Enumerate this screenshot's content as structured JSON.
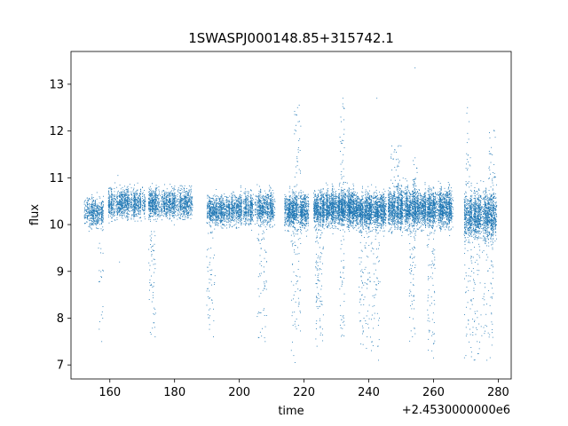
{
  "chart_data": {
    "type": "scatter",
    "title": "1SWASPJ000148.85+315742.1",
    "xlabel": "time",
    "ylabel": "flux",
    "x_offset_label": "+2.4530000000e6",
    "xlim": [
      148,
      284
    ],
    "ylim": [
      6.7,
      13.7
    ],
    "x_ticks": [
      160,
      180,
      200,
      220,
      240,
      260,
      280
    ],
    "y_ticks": [
      7,
      8,
      9,
      10,
      11,
      12,
      13
    ],
    "grid": false,
    "marker_color": "#1f77b4",
    "segments": [
      {
        "x_start": 152.0,
        "x_end": 158.0,
        "center": 10.25,
        "spread": 0.25,
        "n": 60
      },
      {
        "x_start": 159.5,
        "x_end": 171.0,
        "center": 10.45,
        "spread": 0.25,
        "n": 130
      },
      {
        "x_start": 172.0,
        "x_end": 185.5,
        "center": 10.45,
        "spread": 0.25,
        "n": 160
      },
      {
        "x_start": 190.0,
        "x_end": 197.5,
        "center": 10.3,
        "spread": 0.25,
        "n": 100
      },
      {
        "x_start": 197.5,
        "x_end": 211.0,
        "center": 10.35,
        "spread": 0.28,
        "n": 170
      },
      {
        "x_start": 214.0,
        "x_end": 221.5,
        "center": 10.3,
        "spread": 0.3,
        "n": 130
      },
      {
        "x_start": 223.0,
        "x_end": 229.5,
        "center": 10.35,
        "spread": 0.3,
        "n": 130
      },
      {
        "x_start": 229.5,
        "x_end": 236.0,
        "center": 10.35,
        "spread": 0.3,
        "n": 140
      },
      {
        "x_start": 236.0,
        "x_end": 245.5,
        "center": 10.3,
        "spread": 0.3,
        "n": 180
      },
      {
        "x_start": 246.0,
        "x_end": 255.0,
        "center": 10.35,
        "spread": 0.35,
        "n": 180
      },
      {
        "x_start": 255.0,
        "x_end": 266.0,
        "center": 10.35,
        "spread": 0.32,
        "n": 200
      },
      {
        "x_start": 269.5,
        "x_end": 279.5,
        "center": 10.2,
        "spread": 0.4,
        "n": 190
      }
    ],
    "outliers": [
      {
        "x": 157.5,
        "y": 7.5
      },
      {
        "x": 157.8,
        "y": 8.0
      },
      {
        "x": 156.5,
        "y": 9.5
      },
      {
        "x": 162.5,
        "y": 11.05
      },
      {
        "x": 163.0,
        "y": 9.2
      },
      {
        "x": 172.8,
        "y": 8.9
      },
      {
        "x": 173.5,
        "y": 7.9
      },
      {
        "x": 174.0,
        "y": 7.6
      },
      {
        "x": 190.3,
        "y": 9.0
      },
      {
        "x": 191.0,
        "y": 8.2
      },
      {
        "x": 192.0,
        "y": 7.6
      },
      {
        "x": 205.8,
        "y": 8.1
      },
      {
        "x": 206.5,
        "y": 7.7
      },
      {
        "x": 208.0,
        "y": 7.5
      },
      {
        "x": 217.5,
        "y": 12.0
      },
      {
        "x": 218.0,
        "y": 12.5
      },
      {
        "x": 218.2,
        "y": 11.6
      },
      {
        "x": 216.8,
        "y": 7.2
      },
      {
        "x": 217.2,
        "y": 7.05
      },
      {
        "x": 218.5,
        "y": 8.3
      },
      {
        "x": 224.5,
        "y": 8.5
      },
      {
        "x": 225.0,
        "y": 7.8
      },
      {
        "x": 224.0,
        "y": 7.4
      },
      {
        "x": 231.5,
        "y": 12.2
      },
      {
        "x": 232.0,
        "y": 12.7
      },
      {
        "x": 231.8,
        "y": 11.8
      },
      {
        "x": 238.0,
        "y": 8.5
      },
      {
        "x": 238.5,
        "y": 8.0
      },
      {
        "x": 239.5,
        "y": 7.6
      },
      {
        "x": 242.5,
        "y": 12.7
      },
      {
        "x": 243.0,
        "y": 7.1
      },
      {
        "x": 241.0,
        "y": 7.5
      },
      {
        "x": 248.0,
        "y": 11.6
      },
      {
        "x": 249.0,
        "y": 11.4
      },
      {
        "x": 253.5,
        "y": 7.6
      },
      {
        "x": 254.3,
        "y": 13.35
      },
      {
        "x": 254.0,
        "y": 8.2
      },
      {
        "x": 259.5,
        "y": 7.3
      },
      {
        "x": 260.0,
        "y": 7.15
      },
      {
        "x": 258.5,
        "y": 8.0
      },
      {
        "x": 270.5,
        "y": 12.5
      },
      {
        "x": 271.0,
        "y": 12.2
      },
      {
        "x": 270.0,
        "y": 7.2
      },
      {
        "x": 273.5,
        "y": 7.5
      },
      {
        "x": 276.5,
        "y": 7.1
      },
      {
        "x": 275.5,
        "y": 7.8
      },
      {
        "x": 278.8,
        "y": 12.0
      },
      {
        "x": 272.5,
        "y": 8.8
      }
    ],
    "dip_excursions": [
      {
        "x_start": 156.5,
        "x_end": 158.0,
        "y_low": 7.5,
        "n": 6
      },
      {
        "x_start": 172.0,
        "x_end": 174.2,
        "y_low": 7.5,
        "n": 18
      },
      {
        "x_start": 189.8,
        "x_end": 192.5,
        "y_low": 7.5,
        "n": 16
      },
      {
        "x_start": 205.5,
        "x_end": 208.5,
        "y_low": 7.5,
        "n": 20
      },
      {
        "x_start": 216.0,
        "x_end": 219.0,
        "y_low": 7.1,
        "n": 22
      },
      {
        "x_start": 223.5,
        "x_end": 226.0,
        "y_low": 7.4,
        "n": 30
      },
      {
        "x_start": 231.0,
        "x_end": 232.5,
        "y_low": 7.3,
        "n": 14
      },
      {
        "x_start": 237.0,
        "x_end": 243.5,
        "y_low": 7.2,
        "n": 45
      },
      {
        "x_start": 252.5,
        "x_end": 254.5,
        "y_low": 7.5,
        "n": 20
      },
      {
        "x_start": 258.0,
        "x_end": 260.5,
        "y_low": 7.2,
        "n": 22
      },
      {
        "x_start": 269.5,
        "x_end": 278.5,
        "y_low": 7.0,
        "n": 55
      }
    ],
    "spike_excursions": [
      {
        "x_start": 217.0,
        "x_end": 219.0,
        "y_high": 12.6,
        "n": 14
      },
      {
        "x_start": 231.0,
        "x_end": 232.5,
        "y_high": 12.8,
        "n": 14
      },
      {
        "x_start": 246.5,
        "x_end": 250.0,
        "y_high": 11.7,
        "n": 18
      },
      {
        "x_start": 253.5,
        "x_end": 255.0,
        "y_high": 11.5,
        "n": 8
      },
      {
        "x_start": 270.0,
        "x_end": 271.5,
        "y_high": 12.6,
        "n": 12
      },
      {
        "x_start": 277.0,
        "x_end": 279.5,
        "y_high": 12.1,
        "n": 14
      }
    ]
  }
}
